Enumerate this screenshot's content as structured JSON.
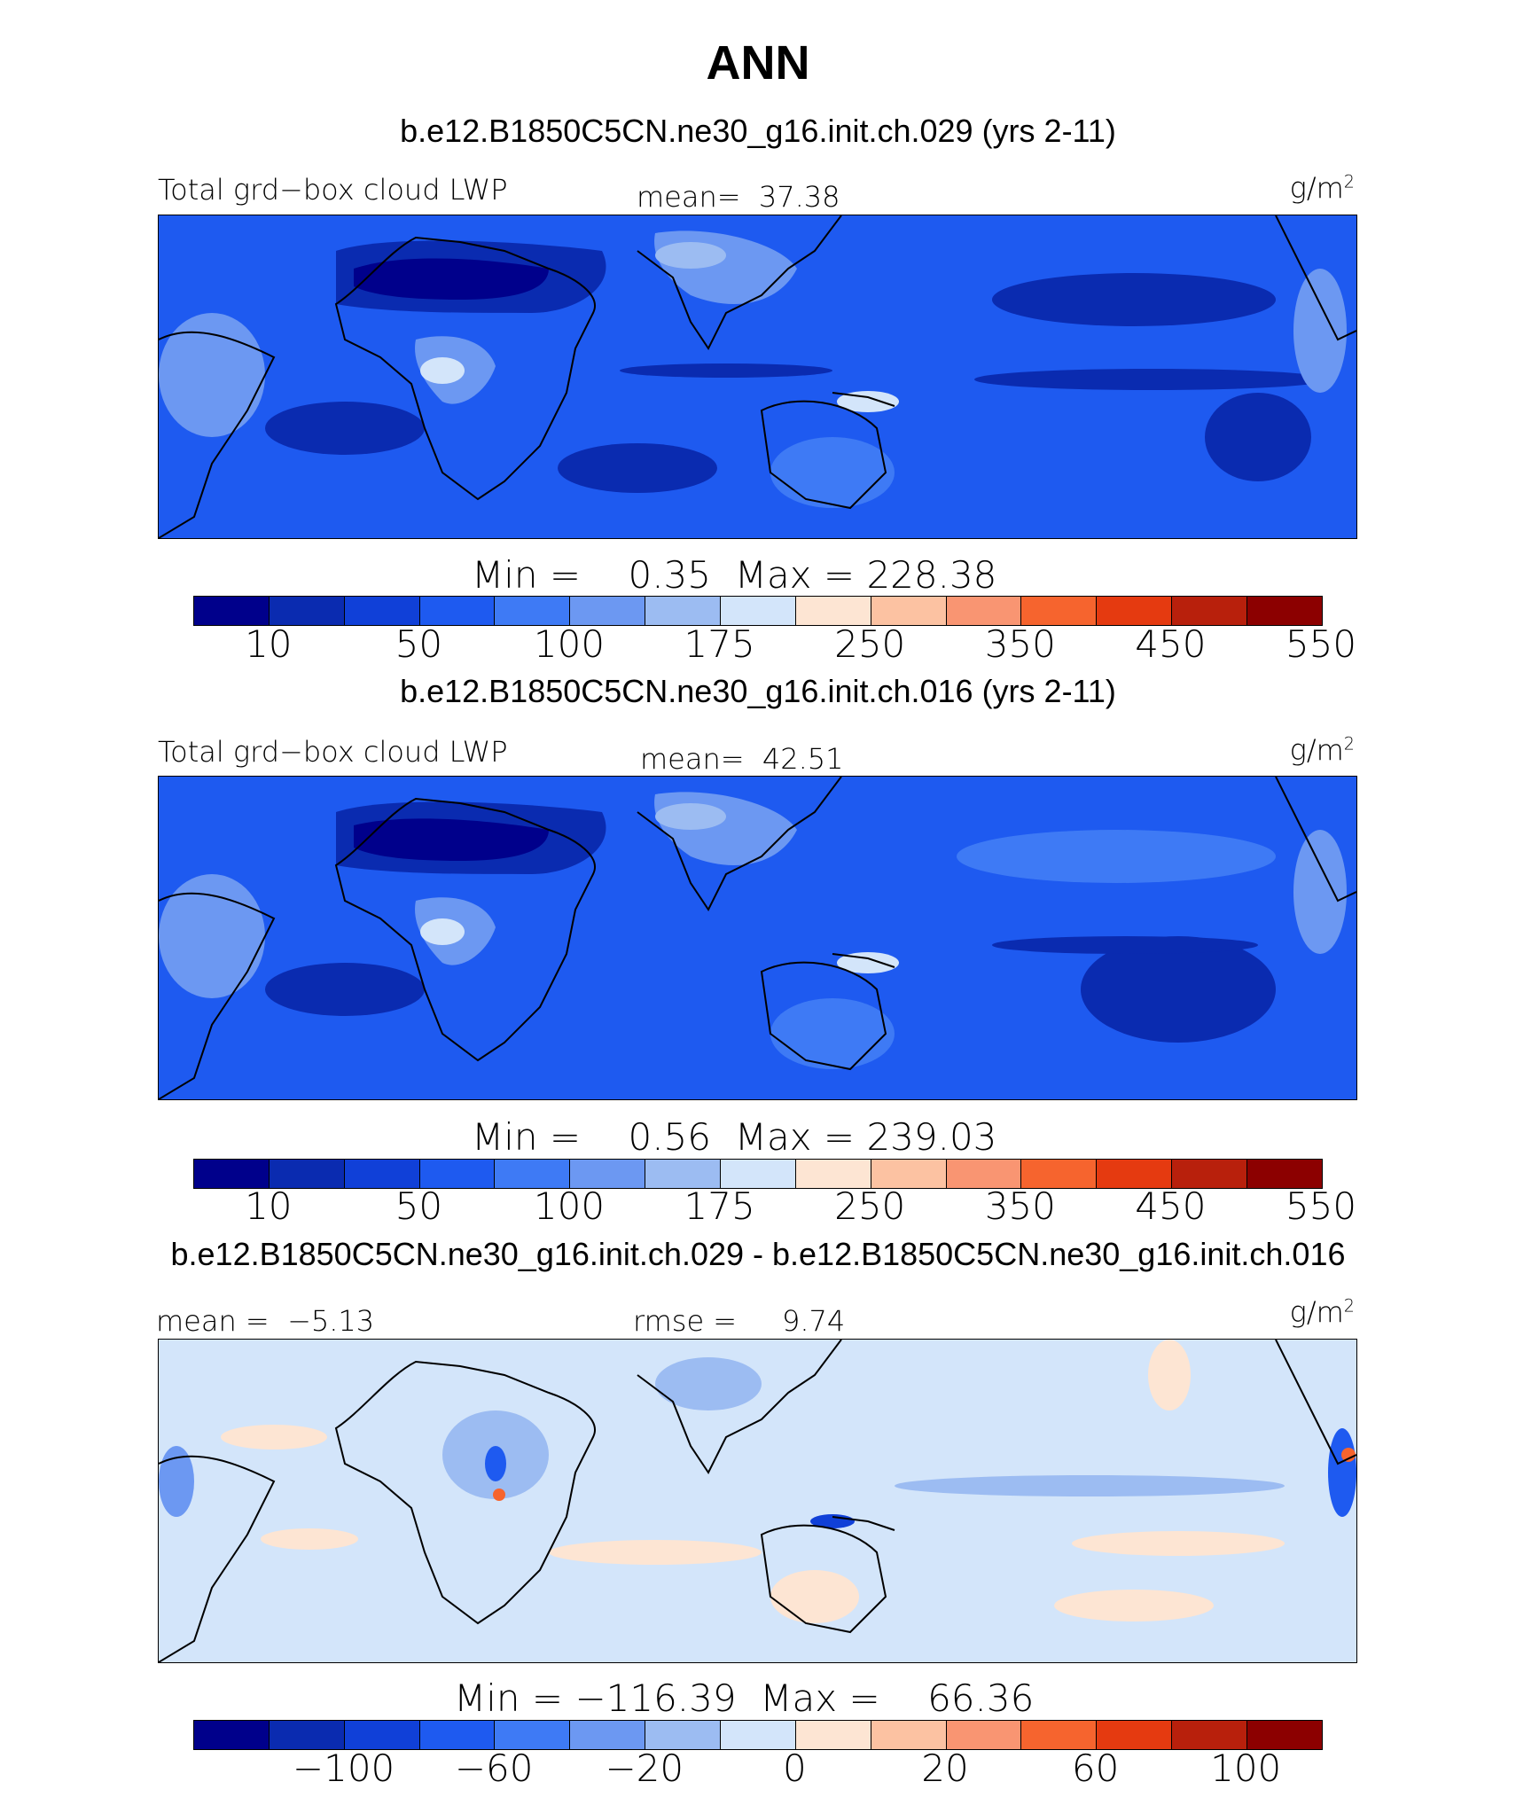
{
  "chart_data": {
    "type": "heatmap",
    "title": "ANN",
    "palette": [
      "#00008b",
      "#0a2bb0",
      "#1040d8",
      "#1e5af0",
      "#3e7af5",
      "#6c98f2",
      "#9cbcf2",
      "#d3e5fa",
      "#fde5d3",
      "#fcc2a2",
      "#f99572",
      "#f6642e",
      "#e53a10",
      "#b8200c",
      "#8c0000"
    ],
    "panels": [
      {
        "case": "b.e12.B1850C5CN.ne30_g16.init.ch.029 (yrs 2-11)",
        "variable": "Total grd−box cloud LWP",
        "stat1_label": "mean=",
        "stat1_value": "37.38",
        "units_base": "g/m",
        "units_exp": "2",
        "min_label": "Min =",
        "min_value": "0.35",
        "max_label": "Max =",
        "max_value": "228.38",
        "colorbar_ticks": [
          "10",
          "50",
          "100",
          "175",
          "250",
          "350",
          "450",
          "550"
        ],
        "levels": [
          5,
          10,
          25,
          50,
          75,
          100,
          150,
          175,
          200,
          250,
          300,
          350,
          400,
          450,
          500,
          550,
          600
        ],
        "field": "control"
      },
      {
        "case": "b.e12.B1850C5CN.ne30_g16.init.ch.016 (yrs 2-11)",
        "variable": "Total grd−box cloud LWP",
        "stat1_label": "mean=",
        "stat1_value": "42.51",
        "units_base": "g/m",
        "units_exp": "2",
        "min_label": "Min =",
        "min_value": "0.56",
        "max_label": "Max =",
        "max_value": "239.03",
        "colorbar_ticks": [
          "10",
          "50",
          "100",
          "175",
          "250",
          "350",
          "450",
          "550"
        ],
        "field": "test"
      },
      {
        "case": "b.e12.B1850C5CN.ne30_g16.init.ch.029 - b.e12.B1850C5CN.ne30_g16.init.ch.016",
        "stat1_label": "mean =",
        "stat1_value": "−5.13",
        "stat2_label": "rmse =",
        "stat2_value": "9.74",
        "units_base": "g/m",
        "units_exp": "2",
        "min_label": "Min =",
        "min_value": "−116.39",
        "max_label": "Max =",
        "max_value": "66.36",
        "colorbar_ticks": [
          "−100",
          "−60",
          "−20",
          "0",
          "20",
          "60",
          "100"
        ],
        "field": "difference"
      }
    ],
    "coastline_color": "#000000"
  }
}
